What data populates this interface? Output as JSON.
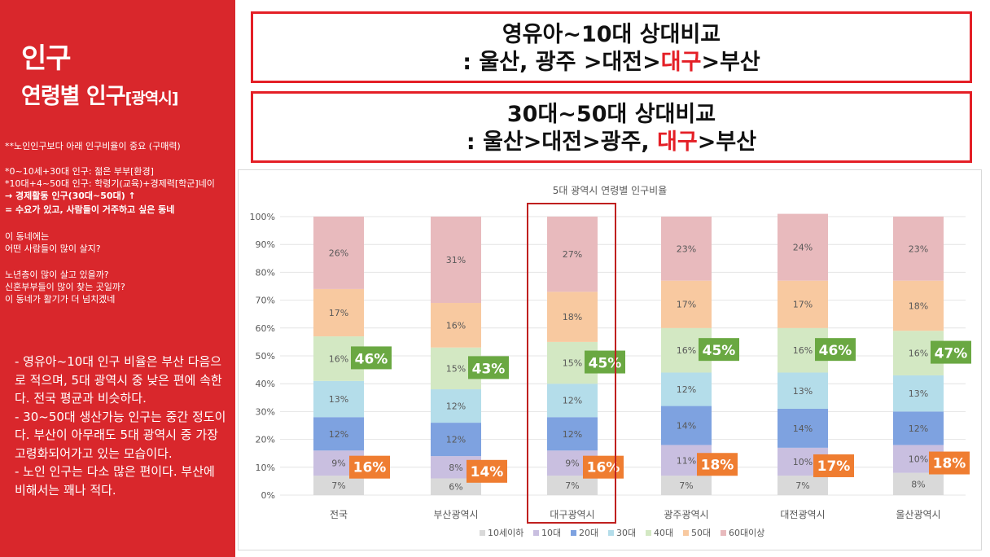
{
  "sidebar": {
    "title": "인구",
    "subtitle_main": "연령별 인구",
    "subtitle_bracket": "[광역시]",
    "notes": [
      {
        "text": "**노인인구보다 아래 인구비율이 중요 (구매력)",
        "bold": false
      },
      {
        "text": "*0~10세+30대 인구: 젊은 부부[환경]",
        "bold": false
      },
      {
        "text": "*10대+4~50대 인구: 학령기(교육)+경제력[학군]네이",
        "bold": false
      },
      {
        "text": "→ 경제활동 인구(30대~50대) ↑",
        "bold": true
      },
      {
        "text": "= 수요가 있고, 사람들이 거주하고 싶은 동네",
        "bold": true
      },
      {
        "text": "이 동네에는",
        "bold": false
      },
      {
        "text": "어떤 사람들이 많이 살지?",
        "bold": false
      },
      {
        "text": "노년층이 많이 살고 있을까?",
        "bold": false
      },
      {
        "text": "신혼부부들이  많이 찾는 곳일까?",
        "bold": false
      },
      {
        "text": "이 동네가 활기가 더 넘치겠네",
        "bold": false
      }
    ],
    "summary": [
      "- 영유아~10대 인구 비율은 부산 다음으로 적으며, 5대 광역시 중 낮은 편에 속한다. 전국 평균과 비슷하다.",
      "- 30~50대 생산가능 인구는 중간 정도이다. 부산이 아무래도 5대 광역시 중 가장 고령화되어가고 있는 모습이다.",
      "- 노인 인구는 다소 많은 편이다. 부산에 비해서는 꽤나 적다."
    ]
  },
  "headline1": {
    "line1": "영유아~10대 상대비교",
    "line2_prefix": ": 울산, 광주 >대전>",
    "line2_highlight": "대구",
    "line2_suffix": ">부산"
  },
  "headline2": {
    "line1": "30대~50대 상대비교",
    "line2_prefix": ": 울산>대전>광주, ",
    "line2_highlight": "대구",
    "line2_suffix": ">부산"
  },
  "chart_data": {
    "type": "bar",
    "stacked": true,
    "percent": true,
    "title": "5대 광역시 연령별 인구비율",
    "categories": [
      "전국",
      "부산광역시",
      "대구광역시",
      "광주광역시",
      "대전광역시",
      "울산광역시"
    ],
    "series": [
      {
        "name": "10세이하",
        "color": "#d9d9d9",
        "values": [
          7,
          6,
          7,
          7,
          7,
          8
        ]
      },
      {
        "name": "10대",
        "color": "#c9bfe0",
        "values": [
          9,
          8,
          9,
          11,
          10,
          10
        ]
      },
      {
        "name": "20대",
        "color": "#7ea2e0",
        "values": [
          12,
          12,
          12,
          14,
          14,
          12
        ]
      },
      {
        "name": "30대",
        "color": "#b4ddea",
        "values": [
          13,
          12,
          12,
          12,
          13,
          13
        ]
      },
      {
        "name": "40대",
        "color": "#d3e8c3",
        "values": [
          16,
          15,
          15,
          16,
          16,
          16
        ]
      },
      {
        "name": "50대",
        "color": "#f8c9a0",
        "values": [
          17,
          16,
          18,
          17,
          17,
          18
        ]
      },
      {
        "name": "60대이상",
        "color": "#e8babd",
        "values": [
          26,
          31,
          27,
          23,
          24,
          23
        ]
      }
    ],
    "callouts_green": [
      "46%",
      "43%",
      "45%",
      "45%",
      "46%",
      "47%"
    ],
    "callouts_orange": [
      "16%",
      "14%",
      "16%",
      "18%",
      "17%",
      "18%"
    ],
    "highlight_category": "대구광역시",
    "ylim": [
      0,
      100
    ],
    "yticks": [
      "0%",
      "10%",
      "20%",
      "30%",
      "40%",
      "50%",
      "60%",
      "70%",
      "80%",
      "90%",
      "100%"
    ],
    "legend_position": "bottom",
    "colors": {
      "green_callout": "#6aa842",
      "orange_callout": "#ef7d31",
      "highlight_box": "#c0201f"
    }
  }
}
